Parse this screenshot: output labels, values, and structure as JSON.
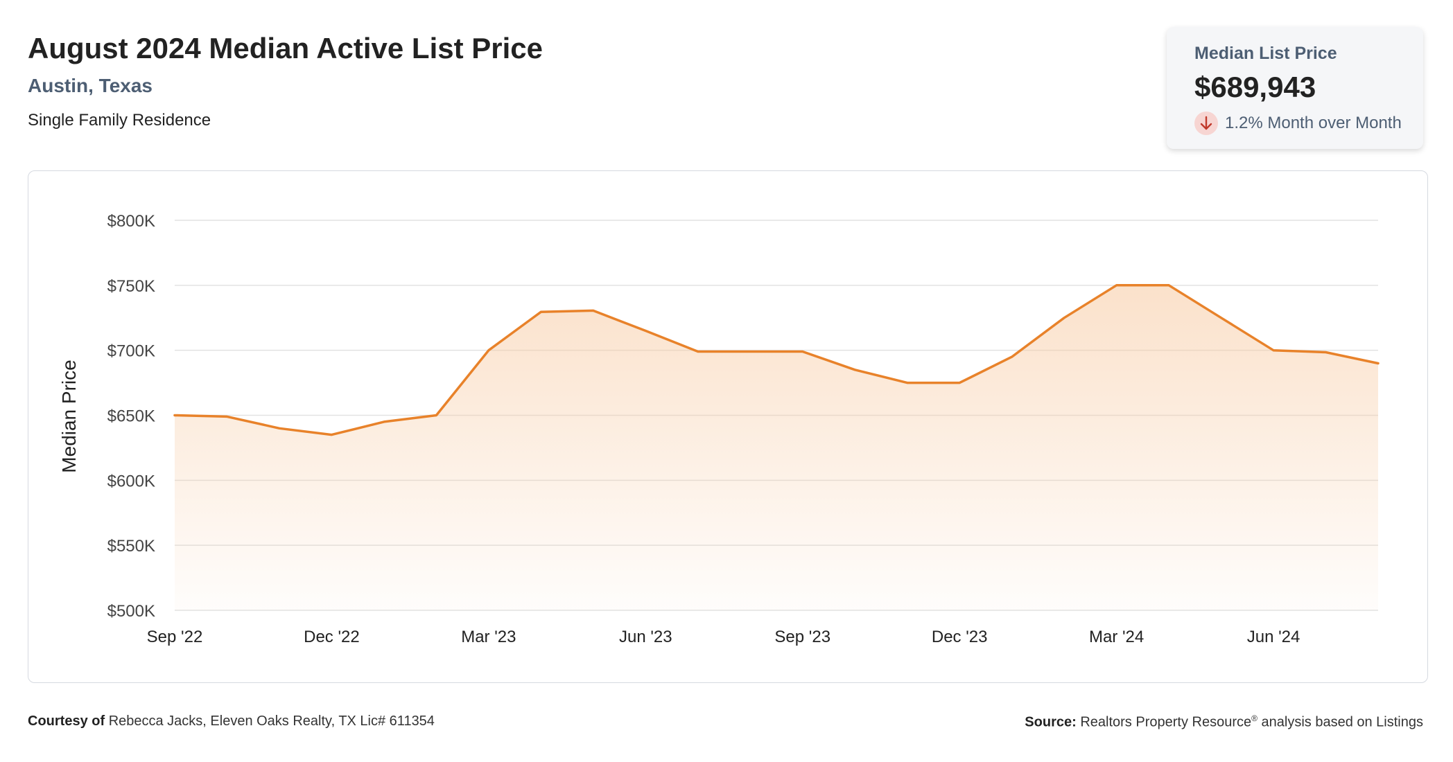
{
  "header": {
    "title": "August 2024 Median Active List Price",
    "subtitle": "Austin, Texas",
    "property_type": "Single Family Residence"
  },
  "stat_card": {
    "label": "Median List Price",
    "value": "$689,943",
    "change": "1.2% Month over Month",
    "direction_icon": "arrow-down-icon",
    "direction_color": "#c0392b"
  },
  "footer": {
    "courtesy_label": "Courtesy of",
    "courtesy_text": "Rebecca Jacks, Eleven Oaks Realty, TX Lic# 611354",
    "source_label": "Source:",
    "source_text_a": "Realtors Property Resource",
    "source_sup": "®",
    "source_text_b": " analysis based on Listings"
  },
  "colors": {
    "line": "#e8822a",
    "fill": "#f7c9a0",
    "grid": "#e2e2e2"
  },
  "chart_data": {
    "type": "area",
    "ylabel": "Median Price",
    "xlabel": "",
    "ylim": [
      500000,
      800000
    ],
    "y_ticks": [
      500000,
      550000,
      600000,
      650000,
      700000,
      750000,
      800000
    ],
    "y_tick_labels": [
      "$500K",
      "$550K",
      "$600K",
      "$650K",
      "$700K",
      "$750K",
      "$800K"
    ],
    "x_tick_labels": [
      "Sep '22",
      "Dec '22",
      "Mar '23",
      "Jun '23",
      "Sep '23",
      "Dec '23",
      "Mar '24",
      "Jun '24"
    ],
    "x_tick_every": 3,
    "grid": true,
    "series": [
      {
        "categories": [
          "2022-09",
          "2022-10",
          "2022-11",
          "2022-12",
          "2023-01",
          "2023-02",
          "2023-03",
          "2023-04",
          "2023-05",
          "2023-06",
          "2023-07",
          "2023-08",
          "2023-09",
          "2023-10",
          "2023-11",
          "2023-12",
          "2024-01",
          "2024-02",
          "2024-03",
          "2024-04",
          "2024-05",
          "2024-06",
          "2024-07",
          "2024-08"
        ],
        "values": [
          650000,
          649000,
          640000,
          635000,
          645000,
          650000,
          700000,
          729500,
          730500,
          715000,
          699000,
          699000,
          699000,
          685000,
          675000,
          675000,
          695000,
          725000,
          750000,
          750000,
          725000,
          700000,
          698500,
          689943
        ]
      }
    ]
  }
}
